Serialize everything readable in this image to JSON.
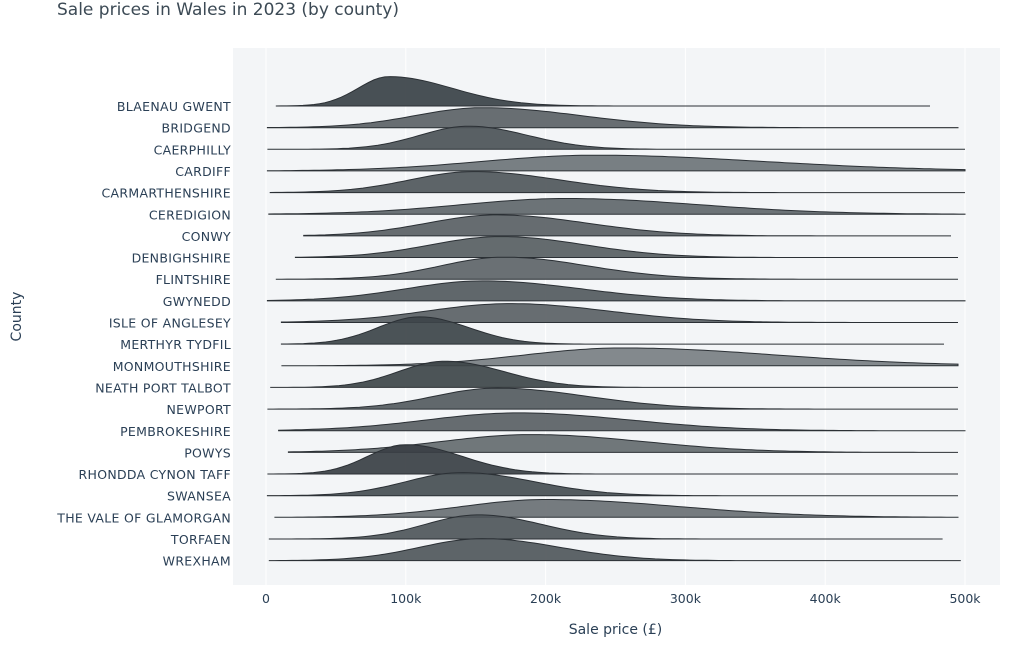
{
  "chart_data": {
    "type": "ridgeline",
    "title": "Sale prices in Wales in 2023 (by county)",
    "xlabel": "Sale price (£)",
    "ylabel": "County",
    "xlim": [
      0,
      500000
    ],
    "x_ticks": [
      0,
      100000,
      200000,
      300000,
      400000,
      500000
    ],
    "x_tick_labels": [
      "0",
      "100k",
      "200k",
      "300k",
      "400k",
      "500k"
    ],
    "grid": true,
    "legend": "none",
    "series": [
      {
        "name": "BLAENAU GWENT",
        "color": "#3a4147",
        "x_min": 7000,
        "x_max": 475000,
        "peak": 88000,
        "spread_left": 22000,
        "spread_right": 45000,
        "height": 1.4
      },
      {
        "name": "BRIDGEND",
        "color": "#5c6266",
        "x_min": 1000,
        "x_max": 495000,
        "peak": 155000,
        "spread_left": 48000,
        "spread_right": 70000,
        "height": 0.95
      },
      {
        "name": "CAERPHILLY",
        "color": "#4c5357",
        "x_min": 1000,
        "x_max": 500000,
        "peak": 145000,
        "spread_left": 35000,
        "spread_right": 42000,
        "height": 1.1
      },
      {
        "name": "CARDIFF",
        "color": "#6e7478",
        "x_min": 1000,
        "x_max": 500000,
        "peak": 235000,
        "spread_left": 80000,
        "spread_right": 120000,
        "height": 0.75
      },
      {
        "name": "CARMARTHENSHIRE",
        "color": "#50575b",
        "x_min": 3000,
        "x_max": 500000,
        "peak": 148000,
        "spread_left": 45000,
        "spread_right": 62000,
        "height": 1.0
      },
      {
        "name": "CEREDIGION",
        "color": "#61676b",
        "x_min": 2000,
        "x_max": 500000,
        "peak": 215000,
        "spread_left": 75000,
        "spread_right": 95000,
        "height": 0.75
      },
      {
        "name": "CONWY",
        "color": "#5a6064",
        "x_min": 27000,
        "x_max": 490000,
        "peak": 165000,
        "spread_left": 50000,
        "spread_right": 65000,
        "height": 1.0
      },
      {
        "name": "DENBIGHSHIRE",
        "color": "#585e62",
        "x_min": 21000,
        "x_max": 495000,
        "peak": 168000,
        "spread_left": 50000,
        "spread_right": 60000,
        "height": 1.0
      },
      {
        "name": "FLINTSHIRE",
        "color": "#5e6468",
        "x_min": 7000,
        "x_max": 495000,
        "peak": 170000,
        "spread_left": 45000,
        "spread_right": 60000,
        "height": 1.05
      },
      {
        "name": "GWYNEDD",
        "color": "#545a5e",
        "x_min": 1000,
        "x_max": 500000,
        "peak": 155000,
        "spread_left": 55000,
        "spread_right": 70000,
        "height": 0.95
      },
      {
        "name": "ISLE OF ANGLESEY",
        "color": "#5b6165",
        "x_min": 11000,
        "x_max": 495000,
        "peak": 175000,
        "spread_left": 60000,
        "spread_right": 70000,
        "height": 0.9
      },
      {
        "name": "MERTHYR TYDFIL",
        "color": "#3d4449",
        "x_min": 11000,
        "x_max": 485000,
        "peak": 110000,
        "spread_left": 30000,
        "spread_right": 35000,
        "height": 1.3
      },
      {
        "name": "MONMOUTHSHIRE",
        "color": "#7a7f83",
        "x_min": 11000,
        "x_max": 495000,
        "peak": 255000,
        "spread_left": 70000,
        "spread_right": 110000,
        "height": 0.85
      },
      {
        "name": "NEATH PORT TALBOT",
        "color": "#3e4549",
        "x_min": 3000,
        "x_max": 495000,
        "peak": 128000,
        "spread_left": 33000,
        "spread_right": 42000,
        "height": 1.25
      },
      {
        "name": "NEWPORT",
        "color": "#555b5f",
        "x_min": 1000,
        "x_max": 495000,
        "peak": 165000,
        "spread_left": 45000,
        "spread_right": 65000,
        "height": 1.0
      },
      {
        "name": "PEMBROKESHIRE",
        "color": "#5a6064",
        "x_min": 9000,
        "x_max": 500000,
        "peak": 180000,
        "spread_left": 65000,
        "spread_right": 80000,
        "height": 0.85
      },
      {
        "name": "POWYS",
        "color": "#656b6f",
        "x_min": 16000,
        "x_max": 495000,
        "peak": 190000,
        "spread_left": 65000,
        "spread_right": 80000,
        "height": 0.85
      },
      {
        "name": "RHONDDA CYNON TAFF",
        "color": "#393f44",
        "x_min": 1000,
        "x_max": 495000,
        "peak": 100000,
        "spread_left": 27000,
        "spread_right": 40000,
        "height": 1.4
      },
      {
        "name": "SWANSEA",
        "color": "#474e52",
        "x_min": 1000,
        "x_max": 495000,
        "peak": 140000,
        "spread_left": 40000,
        "spread_right": 52000,
        "height": 1.1
      },
      {
        "name": "THE VALE OF GLAMORGAN",
        "color": "#6a7074",
        "x_min": 6000,
        "x_max": 495000,
        "peak": 200000,
        "spread_left": 60000,
        "spread_right": 95000,
        "height": 0.85
      },
      {
        "name": "TORFAEN",
        "color": "#4f565a",
        "x_min": 2000,
        "x_max": 484000,
        "peak": 152000,
        "spread_left": 38000,
        "spread_right": 45000,
        "height": 1.15
      },
      {
        "name": "WREXHAM",
        "color": "#50575b",
        "x_min": 2000,
        "x_max": 497000,
        "peak": 155000,
        "spread_left": 45000,
        "spread_right": 55000,
        "height": 1.05
      }
    ]
  }
}
